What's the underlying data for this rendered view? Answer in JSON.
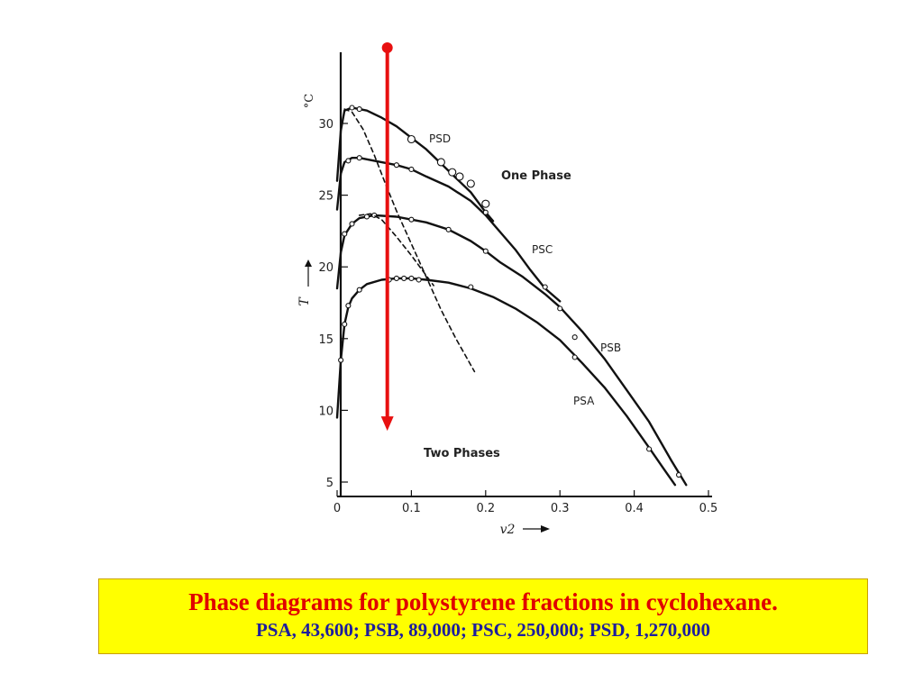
{
  "chart_data": {
    "type": "line",
    "title": "",
    "xlabel": "v2",
    "ylabel": "T",
    "y_unit": "°C",
    "xlim": [
      0,
      0.5
    ],
    "ylim": [
      5,
      35
    ],
    "x_ticks": [
      "0",
      "0.1",
      "0.2",
      "0.3",
      "0.4",
      "0.5"
    ],
    "y_ticks": [
      "5",
      "10",
      "15",
      "20",
      "25",
      "30"
    ],
    "series": [
      {
        "name": "PSD",
        "x": [
          0.0,
          0.005,
          0.01,
          0.02,
          0.03,
          0.04,
          0.06,
          0.08,
          0.1,
          0.12,
          0.14,
          0.16,
          0.18,
          0.2,
          0.21
        ],
        "y": [
          26.0,
          29.5,
          30.9,
          31.1,
          31.0,
          30.9,
          30.4,
          29.8,
          29.0,
          28.2,
          27.2,
          26.2,
          25.2,
          23.8,
          23.2
        ],
        "points_x": [
          0.02,
          0.03,
          0.1,
          0.14,
          0.155,
          0.165,
          0.18,
          0.2
        ],
        "points_y": [
          31.1,
          31.0,
          28.9,
          27.3,
          26.6,
          26.3,
          25.8,
          24.4
        ]
      },
      {
        "name": "PSC",
        "x": [
          0.0,
          0.005,
          0.01,
          0.02,
          0.03,
          0.05,
          0.08,
          0.1,
          0.12,
          0.15,
          0.18,
          0.2,
          0.22,
          0.24,
          0.26,
          0.28,
          0.3
        ],
        "y": [
          24.0,
          26.5,
          27.3,
          27.6,
          27.6,
          27.4,
          27.1,
          26.8,
          26.3,
          25.6,
          24.6,
          23.6,
          22.4,
          21.2,
          19.8,
          18.5,
          17.6
        ],
        "points_x": [
          0.015,
          0.03,
          0.08,
          0.1,
          0.2,
          0.28
        ],
        "points_y": [
          27.4,
          27.6,
          27.1,
          26.8,
          23.8,
          18.6
        ]
      },
      {
        "name": "PSB",
        "x": [
          0.0,
          0.005,
          0.01,
          0.02,
          0.03,
          0.05,
          0.08,
          0.1,
          0.12,
          0.15,
          0.18,
          0.2,
          0.22,
          0.25,
          0.28,
          0.3,
          0.33,
          0.36,
          0.39,
          0.42,
          0.45,
          0.47
        ],
        "y": [
          18.5,
          21.0,
          22.2,
          23.0,
          23.4,
          23.6,
          23.5,
          23.3,
          23.1,
          22.6,
          21.8,
          21.1,
          20.3,
          19.3,
          18.1,
          17.2,
          15.5,
          13.6,
          11.4,
          9.2,
          6.5,
          4.8
        ],
        "points_x": [
          0.01,
          0.02,
          0.04,
          0.05,
          0.1,
          0.15,
          0.2,
          0.3,
          0.32,
          0.46
        ],
        "points_y": [
          22.3,
          23.0,
          23.5,
          23.6,
          23.3,
          22.6,
          21.1,
          17.1,
          15.1,
          5.5
        ]
      },
      {
        "name": "PSA",
        "x": [
          0.0,
          0.005,
          0.01,
          0.015,
          0.02,
          0.03,
          0.04,
          0.06,
          0.08,
          0.1,
          0.12,
          0.15,
          0.18,
          0.21,
          0.24,
          0.27,
          0.3,
          0.33,
          0.36,
          0.39,
          0.42,
          0.44,
          0.455
        ],
        "y": [
          9.5,
          13.5,
          16.0,
          17.2,
          17.8,
          18.4,
          18.8,
          19.1,
          19.2,
          19.2,
          19.1,
          18.9,
          18.5,
          17.9,
          17.1,
          16.1,
          14.9,
          13.3,
          11.6,
          9.6,
          7.4,
          5.9,
          4.8
        ],
        "points_x": [
          0.005,
          0.01,
          0.015,
          0.03,
          0.07,
          0.08,
          0.09,
          0.1,
          0.11,
          0.18,
          0.32,
          0.42
        ],
        "points_y": [
          13.5,
          16.0,
          17.3,
          18.4,
          19.1,
          19.2,
          19.2,
          19.2,
          19.1,
          18.6,
          13.7,
          7.3
        ]
      },
      {
        "name": "",
        "style": "dashed",
        "x": [
          0.01,
          0.02,
          0.035,
          0.05,
          0.065,
          0.08,
          0.1,
          0.12,
          0.14,
          0.16,
          0.185
        ],
        "y": [
          31.0,
          30.8,
          29.6,
          27.8,
          25.8,
          23.9,
          21.6,
          19.3,
          17.0,
          15.0,
          12.7
        ]
      },
      {
        "name": "",
        "style": "dashed",
        "x": [
          0.03,
          0.045,
          0.06,
          0.08,
          0.1,
          0.13
        ],
        "y": [
          23.6,
          23.7,
          23.3,
          22.1,
          20.8,
          18.7
        ]
      }
    ],
    "annotations": [
      "One Phase",
      "Two Phases"
    ],
    "arrow": {
      "x": 0.07,
      "y_start": 35.5,
      "y_end": 8.7,
      "color": "#e81010"
    }
  },
  "caption": {
    "title": "Phase diagrams for polystyrene fractions in cyclohexane.",
    "subtitle": "PSA, 43,600; PSB, 89,000; PSC, 250,000; PSD, 1,270,000"
  }
}
